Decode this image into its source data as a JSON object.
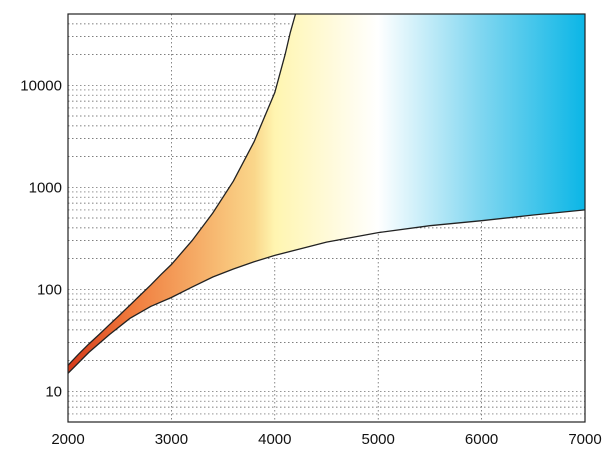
{
  "chart_data": {
    "type": "area",
    "x_scale": "linear",
    "y_scale": "log",
    "xlim": [
      2000,
      7000
    ],
    "ylim": [
      5,
      50000
    ],
    "x_ticks": [
      2000,
      3000,
      4000,
      5000,
      6000,
      7000
    ],
    "y_ticks": [
      10,
      100,
      1000,
      10000
    ],
    "x_tick_labels": [
      "2000",
      "3000",
      "4000",
      "5000",
      "6000",
      "7000"
    ],
    "y_tick_labels": [
      "10",
      "100",
      "1000",
      "10000"
    ],
    "grid": "dotted, major and minor",
    "series": [
      {
        "x": [
          2000,
          2100,
          2200,
          2300,
          2400,
          2500,
          2600,
          2700,
          2800,
          2900,
          3000,
          3200,
          3400,
          3600,
          3800,
          4000,
          4100,
          4150,
          4200
        ],
        "values": [
          18,
          23,
          29,
          36,
          45,
          56,
          70,
          88,
          110,
          140,
          175,
          300,
          560,
          1150,
          2800,
          8500,
          20000,
          33000,
          50000
        ]
      },
      {
        "x": [
          2000,
          2200,
          2400,
          2600,
          2800,
          3000,
          3200,
          3400,
          3600,
          3800,
          4000,
          4500,
          5000,
          5500,
          6000,
          6500,
          7000
        ],
        "values": [
          15,
          24,
          36,
          52,
          68,
          83,
          105,
          132,
          158,
          186,
          215,
          290,
          360,
          420,
          470,
          535,
          600
        ]
      }
    ],
    "fill_colors": [
      "#d63a1a",
      "#f07a3c",
      "#fad68a",
      "#fff5b0",
      "#ffffff",
      "#7fd6f0",
      "#0bb6e6"
    ]
  }
}
